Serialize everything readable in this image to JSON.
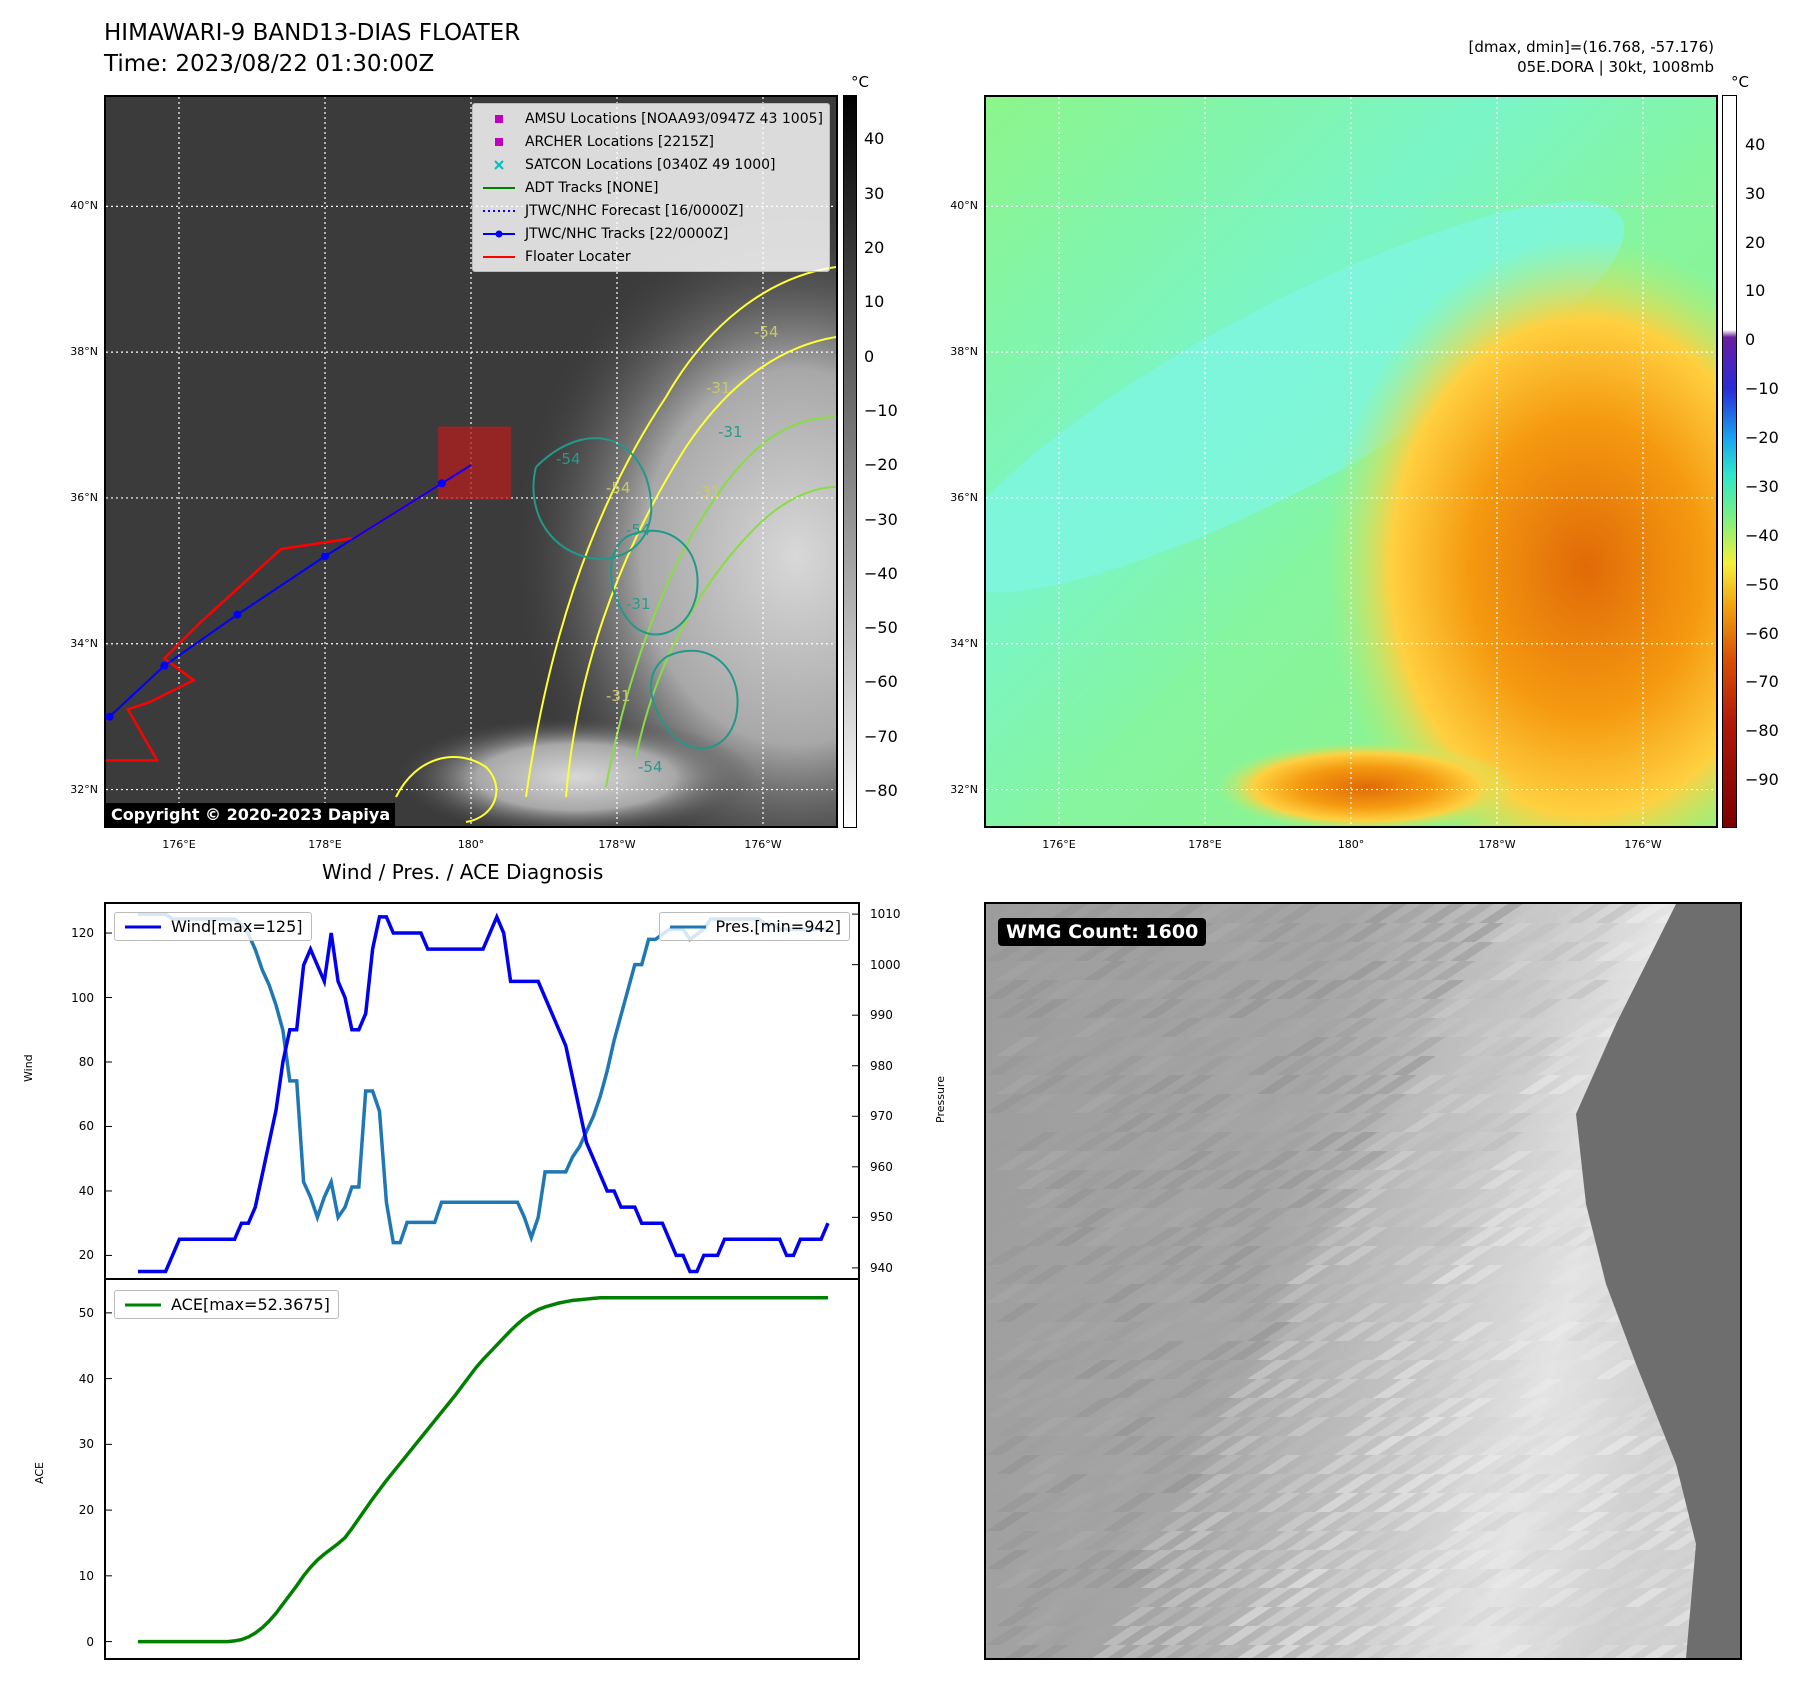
{
  "title": "HIMAWARI-9 BAND13-DIAS FLOATER",
  "time": "Time: 2023/08/22 01:30:00Z",
  "info_line1": "[dmax, dmin]=(16.768, -57.176)",
  "info_line2": "05E.DORA | 30kt, 1008mb",
  "unit_label": "°C",
  "copyright": "Copyright © 2020-2023 Dapiya",
  "wmg_count": "WMG Count: 1600",
  "map_ticks": {
    "lat": [
      "40°N",
      "38°N",
      "36°N",
      "34°N",
      "32°N"
    ],
    "lon": [
      "176°E",
      "178°E",
      "180°",
      "178°W",
      "176°W"
    ]
  },
  "ir_legend": [
    {
      "label": "AMSU Locations [NOAA93/0947Z 43 1005]",
      "symbol": "square",
      "color": "#bf00bf"
    },
    {
      "label": "ARCHER Locations [2215Z]",
      "symbol": "square",
      "color": "#bf00bf"
    },
    {
      "label": "SATCON Locations [0340Z 49 1000]",
      "symbol": "x",
      "color": "#00bfbf"
    },
    {
      "label": "ADT Tracks [NONE]",
      "symbol": "line",
      "color": "#008000"
    },
    {
      "label": "JTWC/NHC Forecast [16/0000Z]",
      "symbol": "dotted",
      "color": "#0000ff"
    },
    {
      "label": "JTWC/NHC Tracks [22/0000Z]",
      "symbol": "line-dot",
      "color": "#0000ff"
    },
    {
      "label": "Floater Locater",
      "symbol": "line",
      "color": "#ff0000"
    }
  ],
  "colorbar_left": {
    "ticks": [
      "40",
      "30",
      "20",
      "10",
      "0",
      "−10",
      "−20",
      "−30",
      "−40",
      "−50",
      "−60",
      "−70",
      "−80"
    ],
    "range": [
      48,
      -87
    ],
    "cmap": "gray"
  },
  "colorbar_right": {
    "ticks": [
      "40",
      "30",
      "20",
      "10",
      "0",
      "−10",
      "−20",
      "−30",
      "−40",
      "−50",
      "−60",
      "−70",
      "−80",
      "−90"
    ],
    "range": [
      50,
      -100
    ],
    "cmap": "dias"
  },
  "contour_labels": [
    "-54",
    "-54",
    "-54",
    "-31",
    "-31",
    "-31",
    "-31",
    "-31",
    "-54",
    "-54"
  ],
  "diag_title": "Wind / Pres. / ACE Diagnosis",
  "chart_data": [
    {
      "type": "line",
      "name": "wind-pressure",
      "ylabel": "Wind",
      "y2label": "Pressure",
      "ylim": [
        13,
        129
      ],
      "y2lim": [
        938,
        1012
      ],
      "yticks": [
        "20",
        "40",
        "60",
        "80",
        "100",
        "120"
      ],
      "y2ticks": [
        "940",
        "950",
        "960",
        "970",
        "980",
        "990",
        "1000",
        "1010"
      ],
      "series": [
        {
          "name": "Wind[max=125]",
          "axis": "left",
          "color": "#0000ee",
          "values": [
            15,
            15,
            15,
            15,
            15,
            20,
            25,
            25,
            25,
            25,
            25,
            25,
            25,
            25,
            25,
            30,
            30,
            35,
            45,
            55,
            65,
            80,
            90,
            90,
            110,
            115,
            110,
            105,
            120,
            105,
            100,
            90,
            90,
            95,
            115,
            125,
            125,
            120,
            120,
            120,
            120,
            120,
            115,
            115,
            115,
            115,
            115,
            115,
            115,
            115,
            115,
            120,
            125,
            120,
            105,
            105,
            105,
            105,
            105,
            100,
            95,
            90,
            85,
            75,
            65,
            55,
            50,
            45,
            40,
            40,
            35,
            35,
            35,
            30,
            30,
            30,
            30,
            25,
            20,
            20,
            15,
            15,
            20,
            20,
            20,
            25,
            25,
            25,
            25,
            25,
            25,
            25,
            25,
            25,
            20,
            20,
            25,
            25,
            25,
            25,
            30
          ]
        },
        {
          "name": "Pres.[min=942]",
          "axis": "right",
          "color": "#1f77b4",
          "values": [
            1010,
            1010,
            1010,
            1010,
            1010,
            1009,
            1009,
            1009,
            1009,
            1009,
            1009,
            1009,
            1009,
            1009,
            1009,
            1008,
            1006,
            1003,
            999,
            996,
            992,
            987,
            977,
            977,
            957,
            954,
            950,
            954,
            957,
            950,
            952,
            956,
            956,
            975,
            975,
            971,
            953,
            945,
            945,
            949,
            949,
            949,
            949,
            949,
            953,
            953,
            953,
            953,
            953,
            953,
            953,
            953,
            953,
            953,
            953,
            953,
            950,
            946,
            950,
            959,
            959,
            959,
            959,
            962,
            964,
            967,
            970,
            974,
            979,
            985,
            990,
            995,
            1000,
            1000,
            1005,
            1005,
            1006,
            1007,
            1007,
            1007,
            1005,
            1006,
            1007,
            1009,
            1009,
            1009,
            1009,
            1009,
            1009,
            1009,
            1009,
            1008,
            1008,
            1007,
            1007,
            1007,
            1007,
            1007,
            1007,
            1007,
            1007
          ]
        }
      ],
      "legend": {
        "wind": "Wind[max=125]",
        "pres": "Pres.[min=942]"
      }
    },
    {
      "type": "line",
      "name": "ace",
      "ylabel": "ACE",
      "ylim": [
        -2.5,
        55
      ],
      "yticks": [
        "0",
        "10",
        "20",
        "30",
        "40",
        "50"
      ],
      "series": [
        {
          "name": "ACE[max=52.3675]",
          "color": "#008000",
          "values": [
            0,
            0,
            0,
            0,
            0,
            0,
            0,
            0,
            0,
            0,
            0,
            0,
            0,
            0,
            0.1,
            0.3,
            0.7,
            1.3,
            2.1,
            3.1,
            4.3,
            5.7,
            7.1,
            8.5,
            10.0,
            11.3,
            12.4,
            13.3,
            14.1,
            14.9,
            15.8,
            17.2,
            18.7,
            20.2,
            21.7,
            23.1,
            24.5,
            25.8,
            27.1,
            28.4,
            29.7,
            31.0,
            32.3,
            33.6,
            34.9,
            36.2,
            37.5,
            38.9,
            40.3,
            41.7,
            42.9,
            44.0,
            45.1,
            46.2,
            47.3,
            48.3,
            49.2,
            49.9,
            50.5,
            50.9,
            51.2,
            51.5,
            51.7,
            51.9,
            52.0,
            52.1,
            52.2,
            52.3,
            52.3,
            52.3,
            52.3,
            52.3,
            52.3,
            52.3,
            52.3,
            52.3,
            52.3,
            52.3,
            52.3,
            52.3,
            52.3,
            52.3,
            52.3,
            52.3,
            52.3,
            52.3,
            52.3,
            52.3,
            52.3,
            52.3,
            52.3,
            52.3,
            52.3,
            52.3,
            52.3,
            52.3,
            52.3,
            52.3,
            52.3,
            52.3,
            52.3
          ]
        }
      ],
      "legend": {
        "ace": "ACE[max=52.3675]"
      }
    }
  ],
  "tracks": {
    "jtwc_nhc": [
      [
        175.05,
        33.0
      ],
      [
        175.8,
        33.7
      ],
      [
        176.8,
        34.4
      ],
      [
        178.0,
        35.2
      ],
      [
        179.6,
        36.2
      ],
      [
        180.0,
        36.45
      ]
    ],
    "floater": [
      [
        175.0,
        32.4
      ],
      [
        175.7,
        32.4
      ],
      [
        175.3,
        33.1
      ],
      [
        175.6,
        33.2
      ],
      [
        176.2,
        33.5
      ],
      [
        175.8,
        33.8
      ],
      [
        176.3,
        34.3
      ],
      [
        177.4,
        35.3
      ],
      [
        178.4,
        35.45
      ],
      [
        180.0,
        36.45
      ]
    ],
    "floater_box": {
      "lon": [
        179.55,
        180.55
      ],
      "lat": [
        35.98,
        36.98
      ]
    }
  }
}
